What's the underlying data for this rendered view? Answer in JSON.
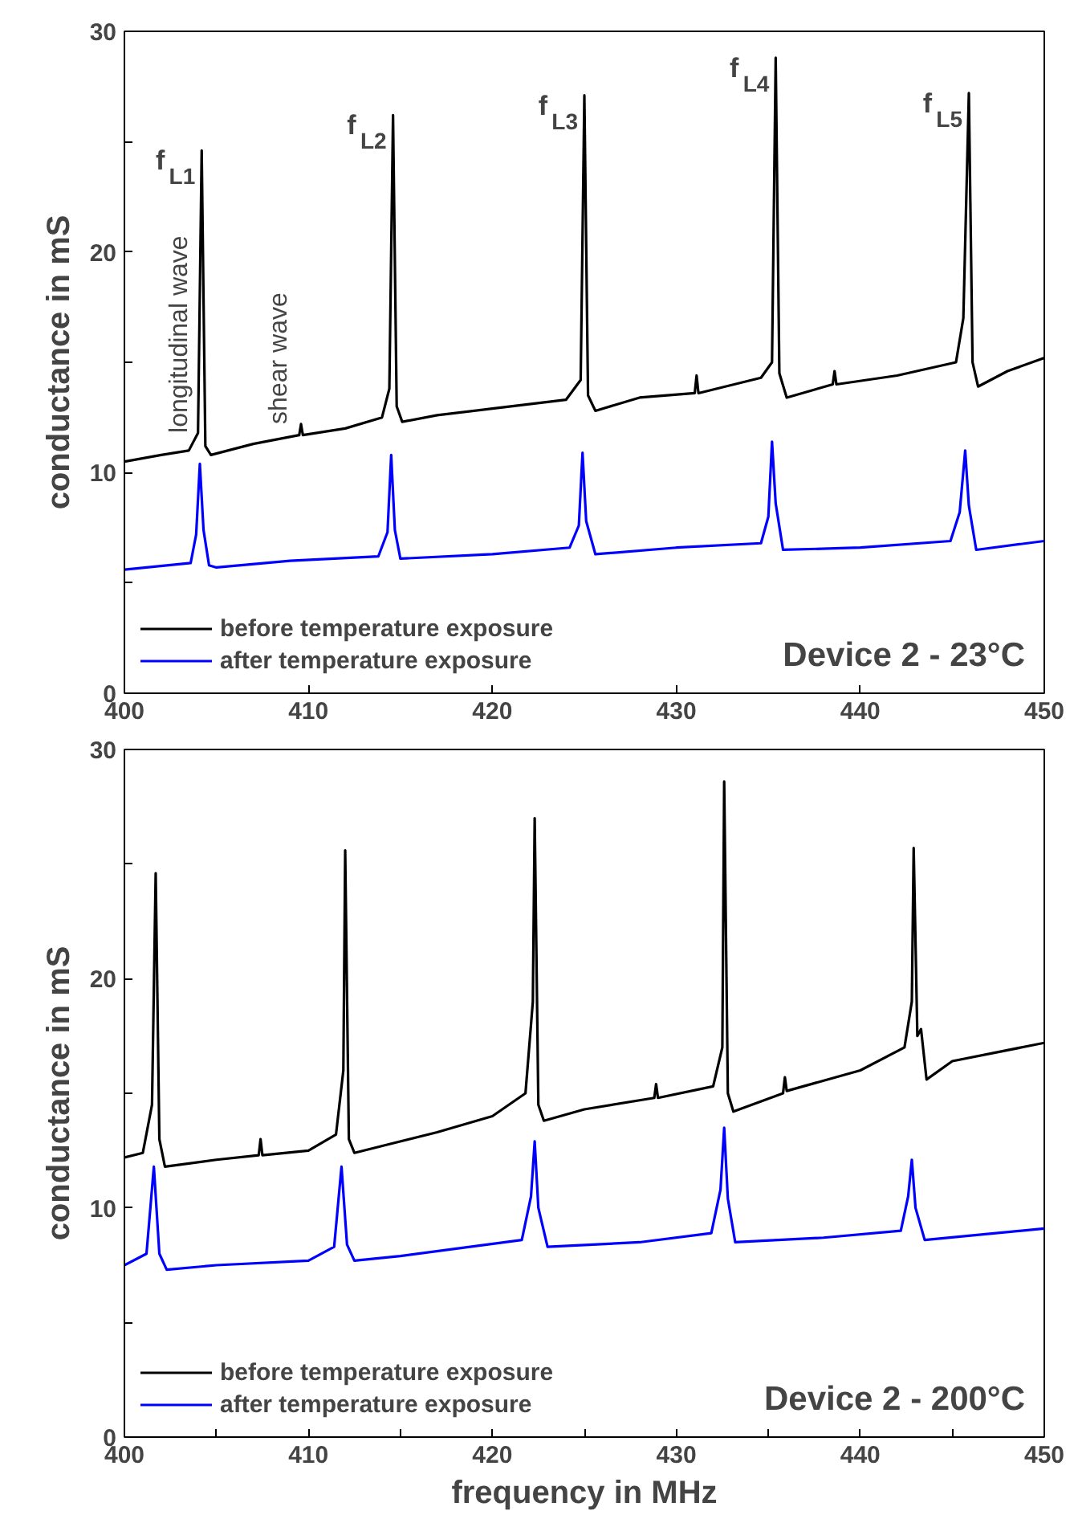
{
  "chart_data": [
    {
      "type": "line",
      "title": "Device 2 - 23°C",
      "ylabel": "conductance in mS",
      "xlim": [
        400,
        450
      ],
      "ylim": [
        0,
        30
      ],
      "xticks": [
        400,
        410,
        420,
        430,
        440,
        450
      ],
      "yticks": [
        0,
        {
          "value": 5,
          "label": null
        },
        10,
        {
          "value": 15,
          "label": null
        },
        20,
        {
          "value": 25,
          "label": null
        },
        30
      ],
      "legend": "bottom left",
      "grid": false,
      "tick_labels": true,
      "series": [
        {
          "name": "before temperature exposure",
          "color": "#000000",
          "x": [
            400,
            402,
            403.5,
            404.0,
            404.2,
            404.4,
            404.7,
            407,
            409.5,
            409.6,
            409.7,
            412,
            414.0,
            414.4,
            414.6,
            414.8,
            415.1,
            417,
            420,
            424.0,
            424.8,
            425.0,
            425.2,
            425.6,
            428,
            431.0,
            431.1,
            431.2,
            434.6,
            435.2,
            435.4,
            435.6,
            436.0,
            438.5,
            438.6,
            438.7,
            442,
            445.2,
            445.6,
            445.9,
            446.1,
            446.4,
            448,
            450
          ],
          "values": [
            10.5,
            10.8,
            11.0,
            11.8,
            24.6,
            11.2,
            10.8,
            11.3,
            11.7,
            12.2,
            11.7,
            12.0,
            12.5,
            13.8,
            26.2,
            13.0,
            12.3,
            12.6,
            12.9,
            13.3,
            14.2,
            27.1,
            13.5,
            12.8,
            13.4,
            13.6,
            14.4,
            13.6,
            14.3,
            15.0,
            28.8,
            14.5,
            13.4,
            14.0,
            14.6,
            14.0,
            14.4,
            15.0,
            17.0,
            27.2,
            15.0,
            13.9,
            14.6,
            15.2
          ]
        },
        {
          "name": "after temperature exposure",
          "color": "#0000ff",
          "x": [
            400,
            403.6,
            403.9,
            404.1,
            404.3,
            404.6,
            405.0,
            409,
            413.8,
            414.3,
            414.5,
            414.7,
            415.0,
            420,
            424.2,
            424.7,
            424.9,
            425.1,
            425.6,
            430,
            434.6,
            435.0,
            435.2,
            435.4,
            435.8,
            440,
            444.9,
            445.4,
            445.7,
            445.9,
            446.3,
            450
          ],
          "values": [
            5.6,
            5.9,
            7.2,
            10.4,
            7.4,
            5.8,
            5.7,
            6.0,
            6.2,
            7.3,
            10.8,
            7.4,
            6.1,
            6.3,
            6.6,
            7.6,
            10.9,
            7.8,
            6.3,
            6.6,
            6.8,
            8.0,
            11.4,
            8.6,
            6.5,
            6.6,
            6.9,
            8.2,
            11.0,
            8.5,
            6.5,
            6.9
          ]
        }
      ],
      "annotations": [
        {
          "text": "f$_{L1}$",
          "x": 404.2,
          "y": 24.6
        },
        {
          "text": "f$_{L2}$",
          "x": 414.6,
          "y": 26.2
        },
        {
          "text": "f$_{L3}$",
          "x": 425.0,
          "y": 27.1
        },
        {
          "text": "f$_{L4}$",
          "x": 435.4,
          "y": 28.8
        },
        {
          "text": "f$_{L5}$",
          "x": 445.9,
          "y": 27.2
        },
        {
          "text": "longitudinal wave",
          "x": 404.2,
          "y": 11.8
        },
        {
          "text": "shear wave",
          "x": 409.6,
          "y": 12.2
        }
      ]
    },
    {
      "type": "line",
      "title": "Device 2 - 200°C",
      "ylabel": "conductance in mS",
      "xlabel": "frequency in MHz",
      "xlim": [
        400,
        450
      ],
      "ylim": [
        0,
        30
      ],
      "xticks": [
        400,
        {
          "value": 405,
          "label": null
        },
        410,
        {
          "value": 415,
          "label": null
        },
        420,
        {
          "value": 425,
          "label": null
        },
        430,
        {
          "value": 435,
          "label": null
        },
        440,
        {
          "value": 445,
          "label": null
        },
        450
      ],
      "yticks": [
        0,
        {
          "value": 5,
          "label": null
        },
        10,
        {
          "value": 15,
          "label": null
        },
        20,
        {
          "value": 25,
          "label": null
        },
        30
      ],
      "legend": "bottom left",
      "grid": false,
      "series": [
        {
          "name": "before temperature exposure",
          "color": "#000000",
          "x": [
            400,
            401.0,
            401.5,
            401.7,
            401.9,
            402.2,
            405,
            407.3,
            407.4,
            407.5,
            410,
            411.5,
            411.9,
            412.0,
            412.2,
            412.5,
            414.5,
            417,
            420,
            421.8,
            422.2,
            422.3,
            422.5,
            422.8,
            425,
            428.8,
            428.9,
            429,
            432.0,
            432.5,
            432.6,
            432.8,
            433.1,
            435.8,
            435.9,
            436,
            440,
            442.4,
            442.8,
            442.9,
            443.1,
            443.3,
            443.6,
            445,
            450
          ],
          "values": [
            12.2,
            12.4,
            14.5,
            24.6,
            13.0,
            11.8,
            12.1,
            12.3,
            13.0,
            12.3,
            12.5,
            13.2,
            16.0,
            25.6,
            13.0,
            12.4,
            12.8,
            13.3,
            14.0,
            15.0,
            19.0,
            27.0,
            14.5,
            13.8,
            14.3,
            14.8,
            15.4,
            14.8,
            15.3,
            17.0,
            28.6,
            15.0,
            14.2,
            15.0,
            15.7,
            15.1,
            16.0,
            17.0,
            19.0,
            25.7,
            17.5,
            17.8,
            15.6,
            16.4,
            17.2
          ]
        },
        {
          "name": "after temperature exposure",
          "color": "#0000ff",
          "x": [
            400,
            401.2,
            401.6,
            401.9,
            402.3,
            405,
            410,
            411.4,
            411.8,
            412.1,
            412.5,
            415,
            421.6,
            422.1,
            422.3,
            422.5,
            423.0,
            428,
            431.9,
            432.4,
            432.6,
            432.8,
            433.2,
            438,
            442.2,
            442.6,
            442.8,
            443.0,
            443.5,
            450
          ],
          "values": [
            7.5,
            8.0,
            11.8,
            8.0,
            7.3,
            7.5,
            7.7,
            8.3,
            11.8,
            8.4,
            7.7,
            7.9,
            8.6,
            10.5,
            12.9,
            10.0,
            8.3,
            8.5,
            8.9,
            10.8,
            13.5,
            10.4,
            8.5,
            8.7,
            9.0,
            10.5,
            12.1,
            10.0,
            8.6,
            9.1
          ]
        }
      ]
    }
  ]
}
